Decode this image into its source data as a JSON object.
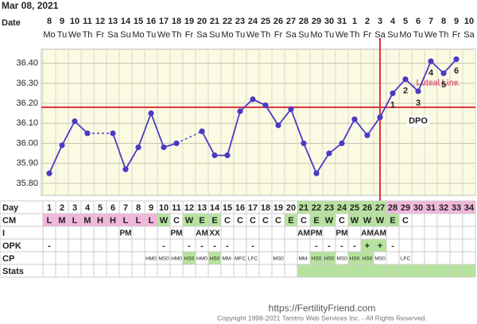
{
  "date": "Mar 08, 2021",
  "chart_data": {
    "type": "line",
    "date_label": "Date",
    "dates": [
      8,
      9,
      10,
      11,
      12,
      13,
      14,
      15,
      16,
      17,
      18,
      19,
      20,
      21,
      22,
      23,
      24,
      25,
      26,
      27,
      28,
      29,
      30,
      31,
      1,
      2,
      3,
      4,
      5,
      6,
      7,
      8,
      9,
      10
    ],
    "weekdays": [
      "Mo",
      "Tu",
      "We",
      "Th",
      "Fr",
      "Sa",
      "Su",
      "Mo",
      "Tu",
      "We",
      "Th",
      "Fr",
      "Sa",
      "Su",
      "Mo",
      "Tu",
      "We",
      "Th",
      "Fr",
      "Sa",
      "Su",
      "Mo",
      "Tu",
      "We",
      "Th",
      "Fr",
      "Sa",
      "Su",
      "Mo",
      "Tu",
      "We",
      "Th",
      "Fr",
      "Sa"
    ],
    "values": [
      35.85,
      35.99,
      36.11,
      36.05,
      null,
      36.05,
      35.87,
      35.98,
      36.15,
      35.98,
      36.0,
      null,
      36.06,
      35.94,
      35.94,
      36.16,
      36.22,
      36.19,
      36.09,
      36.17,
      36.0,
      35.85,
      35.95,
      36.0,
      36.12,
      36.04,
      36.13,
      36.25,
      36.32,
      36.26,
      36.41,
      36.35,
      36.42,
      null
    ],
    "color": "#4b3ac6",
    "ylim": [
      35.74,
      36.47
    ],
    "yticks": [
      {
        "value": 36.4,
        "label": "36.40"
      },
      {
        "value": 36.3,
        "label": "36.30"
      },
      {
        "value": 36.2,
        "label": "36.20"
      },
      {
        "value": 36.1,
        "label": "36.10"
      },
      {
        "value": 36.0,
        "label": "36.00"
      },
      {
        "value": 35.9,
        "label": "35.90"
      },
      {
        "value": 35.8,
        "label": "35.80"
      }
    ],
    "coverline": 36.18,
    "ovulation_day": 27,
    "dpo": [
      null,
      null,
      null,
      null,
      null,
      null,
      null,
      null,
      null,
      null,
      null,
      null,
      null,
      null,
      null,
      null,
      null,
      null,
      null,
      null,
      null,
      null,
      null,
      null,
      null,
      null,
      null,
      1,
      2,
      3,
      4,
      5,
      6,
      null
    ],
    "dpo_label": "DPO",
    "luteal_line": {
      "label": "Luteal Line",
      "value": 36.29
    },
    "table": [
      {
        "label": "Day",
        "cells": [
          1,
          2,
          3,
          4,
          5,
          6,
          7,
          8,
          9,
          10,
          11,
          12,
          13,
          14,
          15,
          16,
          17,
          18,
          19,
          20,
          21,
          22,
          23,
          24,
          25,
          26,
          27,
          28,
          29,
          30,
          31,
          32,
          33,
          34
        ]
      },
      {
        "label": "CM",
        "cells": [
          "L",
          "M",
          "L",
          "M",
          "H",
          "H",
          "L",
          "L",
          "L",
          "W",
          "C",
          "W",
          "E",
          "E",
          "C",
          "C",
          "C",
          "C",
          "C",
          "E",
          "C",
          "E",
          "W",
          "C",
          "W",
          "W",
          "W",
          "E",
          "C",
          null,
          null,
          null,
          null,
          null
        ]
      },
      {
        "label": "I",
        "cells": [
          null,
          null,
          null,
          null,
          null,
          null,
          "PM",
          null,
          null,
          null,
          "PM",
          null,
          "AM",
          "XX",
          null,
          null,
          null,
          null,
          null,
          null,
          "AM",
          "PM",
          null,
          "PM",
          null,
          "AM",
          "AM",
          null,
          null,
          null,
          null,
          null,
          null,
          null
        ]
      },
      {
        "label": "OPK",
        "cells": [
          "-",
          null,
          null,
          null,
          null,
          null,
          null,
          null,
          null,
          "-",
          null,
          "-",
          "-",
          "-",
          "-",
          null,
          "-",
          null,
          null,
          null,
          null,
          "-",
          "-",
          "-",
          "-",
          "+",
          "+",
          "-",
          null,
          null,
          null,
          null,
          null,
          null
        ]
      },
      {
        "label": "CP",
        "cells": [
          null,
          null,
          null,
          null,
          null,
          null,
          null,
          null,
          "HM0",
          "MS0",
          "HM0",
          "HS0",
          "HM0",
          "HS0",
          "MM-",
          "MFC",
          "LFC",
          null,
          "MS0",
          null,
          "MM-",
          "HS0",
          "HS0",
          "MS0",
          "HS0",
          "HS0",
          "MS0",
          null,
          "LFC",
          null,
          null,
          null,
          null,
          null
        ]
      },
      {
        "label": "Stats"
      }
    ]
  },
  "footer": {
    "url": "https://FertilityFriend.com",
    "copyright": "Copyright 1998-2021 Tamtris Web Services Inc. - All Rights Reserved."
  }
}
